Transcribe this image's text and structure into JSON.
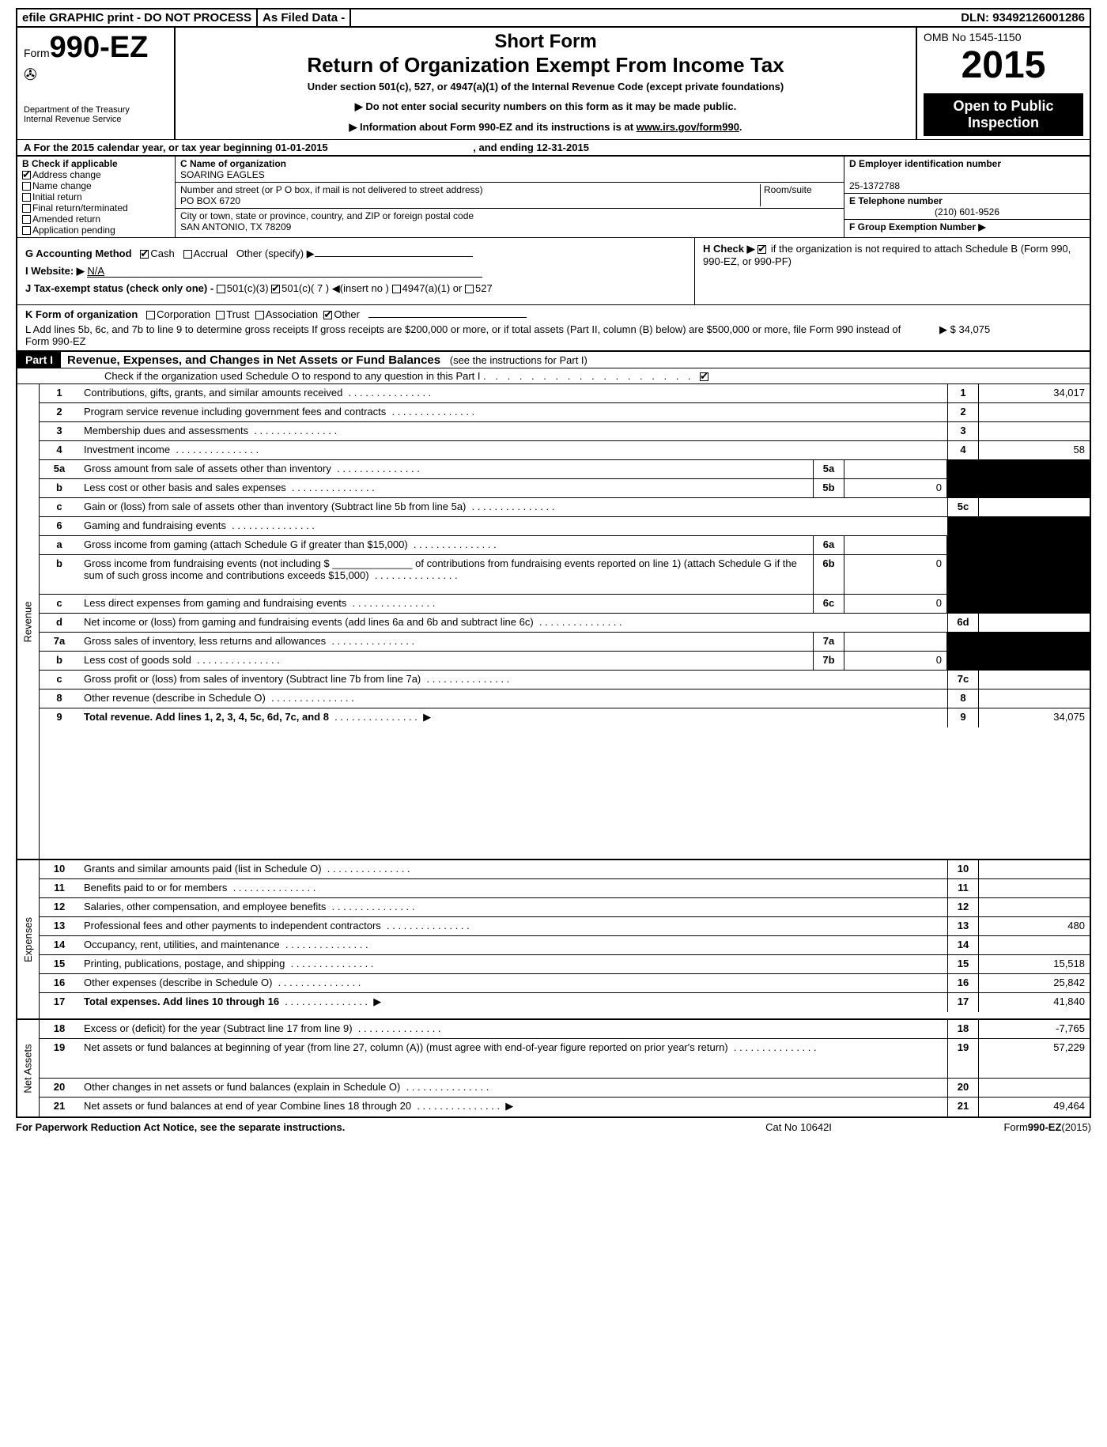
{
  "topbar": {
    "efile": "efile GRAPHIC print - DO NOT PROCESS",
    "asfiled": "As Filed Data -",
    "dln_label": "DLN:",
    "dln": "93492126001286"
  },
  "header": {
    "form_prefix": "Form",
    "form_no": "990-EZ",
    "title1": "Short Form",
    "title2": "Return of Organization Exempt From Income Tax",
    "subtitle": "Under section 501(c), 527, or 4947(a)(1) of the Internal Revenue Code (except private foundations)",
    "instruct1": "▶ Do not enter social security numbers on this form as it may be made public.",
    "instruct2": "▶ Information about Form 990-EZ and its instructions is at ",
    "instruct2_link": "www.irs.gov/form990",
    "dept1": "Department of the Treasury",
    "dept2": "Internal Revenue Service",
    "omb": "OMB No 1545-1150",
    "year": "2015",
    "open": "Open to Public Inspection"
  },
  "lineA": {
    "text_a": "A  For the 2015 calendar year, or tax year beginning 01-01-2015",
    "text_b": " , and ending 12-31-2015"
  },
  "colB": {
    "header": "B  Check if applicable",
    "items": [
      "Address change",
      "Name change",
      "Initial return",
      "Final return/terminated",
      "Amended return",
      "Application pending"
    ],
    "checked": [
      true,
      false,
      false,
      false,
      false,
      false
    ]
  },
  "colC": {
    "name_label": "C Name of organization",
    "name": "SOARING EAGLES",
    "street_label": "Number and street (or P O box, if mail is not delivered to street address)",
    "room_label": "Room/suite",
    "street": "PO BOX 6720",
    "city_label": "City or town, state or province, country, and ZIP or foreign postal code",
    "city": "SAN ANTONIO, TX  78209"
  },
  "colD": {
    "d_label": "D Employer identification number",
    "ein": "25-1372788",
    "e_label": "E Telephone number",
    "phone": "(210) 601-9526",
    "f_label": "F Group Exemption Number  ▶"
  },
  "rowG": {
    "g": "G Accounting Method",
    "cash": "Cash",
    "accrual": "Accrual",
    "other": "Other (specify) ▶",
    "h": "H  Check ▶",
    "h2": "if the organization is not required to attach Schedule B (Form 990, 990-EZ, or 990-PF)",
    "i": "I Website: ▶",
    "i_val": "N/A",
    "j": "J Tax-exempt status (check only one) -",
    "j1": "501(c)(3)",
    "j2": "501(c)( 7 ) ◀(insert no )",
    "j3": "4947(a)(1) or",
    "j4": "527"
  },
  "rowK": "K Form of organization",
  "rowK_opts": [
    "Corporation",
    "Trust",
    "Association",
    "Other"
  ],
  "rowL": {
    "text": "L Add lines 5b, 6c, and 7b to line 9 to determine gross receipts  If gross receipts are $200,000 or more, or if total assets (Part II, column (B) below) are $500,000 or more, file Form 990 instead of Form 990-EZ",
    "arrow_val": "▶ $ 34,075"
  },
  "part1": {
    "label": "Part I",
    "title": "Revenue, Expenses, and Changes in Net Assets or Fund Balances",
    "sub": "(see the instructions for Part I)",
    "check_o": "Check if the organization used Schedule O to respond to any question in this Part I"
  },
  "sections": {
    "revenue": "Revenue",
    "expenses": "Expenses",
    "netassets": "Net Assets"
  },
  "lines": [
    {
      "n": "1",
      "d": "Contributions, gifts, grants, and similar amounts received",
      "en": "1",
      "ev": "34,017"
    },
    {
      "n": "2",
      "d": "Program service revenue including government fees and contracts",
      "en": "2",
      "ev": ""
    },
    {
      "n": "3",
      "d": "Membership dues and assessments",
      "en": "3",
      "ev": ""
    },
    {
      "n": "4",
      "d": "Investment income",
      "en": "4",
      "ev": "58"
    },
    {
      "n": "5a",
      "d": "Gross amount from sale of assets other than inventory",
      "mn": "5a",
      "mv": "",
      "shade": true
    },
    {
      "n": "b",
      "d": "Less  cost or other basis and sales expenses",
      "mn": "5b",
      "mv": "0",
      "shade": true
    },
    {
      "n": "c",
      "d": "Gain or (loss) from sale of assets other than inventory (Subtract line 5b from line 5a)",
      "en": "5c",
      "ev": ""
    },
    {
      "n": "6",
      "d": "Gaming and fundraising events",
      "shade": true,
      "noend": true
    },
    {
      "n": "a",
      "d": "Gross income from gaming (attach Schedule G if greater than $15,000)",
      "mn": "6a",
      "mv": "",
      "shade": true
    },
    {
      "n": "b",
      "d": "Gross income from fundraising events (not including $ ______________ of contributions from fundraising events reported on line 1) (attach Schedule G if the sum of such gross income and contributions exceeds $15,000)",
      "mn": "6b",
      "mv": "0",
      "shade": true,
      "tall": true
    },
    {
      "n": "c",
      "d": "Less  direct expenses from gaming and fundraising events",
      "mn": "6c",
      "mv": "0",
      "shade": true
    },
    {
      "n": "d",
      "d": "Net income or (loss) from gaming and fundraising events (add lines 6a and 6b and subtract line 6c)",
      "en": "6d",
      "ev": ""
    },
    {
      "n": "7a",
      "d": "Gross sales of inventory, less returns and allowances",
      "mn": "7a",
      "mv": "",
      "shade": true
    },
    {
      "n": "b",
      "d": "Less  cost of goods sold",
      "mn": "7b",
      "mv": "0",
      "shade": true
    },
    {
      "n": "c",
      "d": "Gross profit or (loss) from sales of inventory (Subtract line 7b from line 7a)",
      "en": "7c",
      "ev": ""
    },
    {
      "n": "8",
      "d": "Other revenue (describe in Schedule O)",
      "en": "8",
      "ev": ""
    },
    {
      "n": "9",
      "d": "Total revenue. Add lines 1, 2, 3, 4, 5c, 6d, 7c, and 8",
      "en": "9",
      "ev": "34,075",
      "arrow": true,
      "bold": true
    },
    {
      "n": "10",
      "d": "Grants and similar amounts paid (list in Schedule O)",
      "en": "10",
      "ev": ""
    },
    {
      "n": "11",
      "d": "Benefits paid to or for members",
      "en": "11",
      "ev": ""
    },
    {
      "n": "12",
      "d": "Salaries, other compensation, and employee benefits",
      "en": "12",
      "ev": ""
    },
    {
      "n": "13",
      "d": "Professional fees and other payments to independent contractors",
      "en": "13",
      "ev": "480"
    },
    {
      "n": "14",
      "d": "Occupancy, rent, utilities, and maintenance",
      "en": "14",
      "ev": ""
    },
    {
      "n": "15",
      "d": "Printing, publications, postage, and shipping",
      "en": "15",
      "ev": "15,518"
    },
    {
      "n": "16",
      "d": "Other expenses (describe in Schedule O)",
      "en": "16",
      "ev": "25,842"
    },
    {
      "n": "17",
      "d": "Total expenses. Add lines 10 through 16",
      "en": "17",
      "ev": "41,840",
      "arrow": true,
      "bold": true
    },
    {
      "n": "18",
      "d": "Excess or (deficit) for the year (Subtract line 17 from line 9)",
      "en": "18",
      "ev": "-7,765"
    },
    {
      "n": "19",
      "d": "Net assets or fund balances at beginning of year (from line 27, column (A)) (must agree with end-of-year figure reported on prior year's return)",
      "en": "19",
      "ev": "57,229",
      "tall": true
    },
    {
      "n": "20",
      "d": "Other changes in net assets or fund balances (explain in Schedule O)",
      "en": "20",
      "ev": ""
    },
    {
      "n": "21",
      "d": "Net assets or fund balances at end of year  Combine lines 18 through 20",
      "en": "21",
      "ev": "49,464",
      "arrow": true
    }
  ],
  "footer": {
    "left": "For Paperwork Reduction Act Notice, see the separate instructions.",
    "mid": "Cat No 10642I",
    "right_a": "Form",
    "right_b": "990-EZ",
    "right_c": "(2015)"
  }
}
